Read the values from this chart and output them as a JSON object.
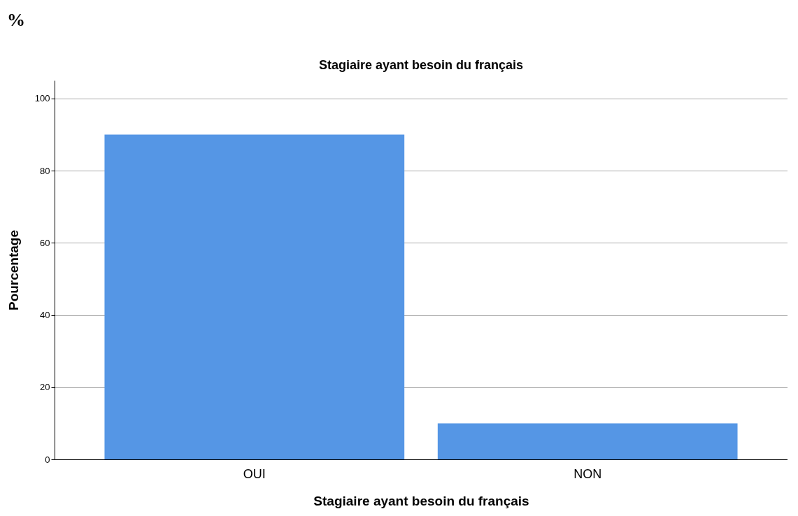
{
  "chart_data": {
    "type": "bar",
    "title": "Stagiaire ayant besoin du français",
    "xlabel": "Stagiaire ayant besoin du français",
    "ylabel": "Pourcentage",
    "annotations": [
      "%"
    ],
    "categories": [
      "OUI",
      "NON"
    ],
    "values": [
      90,
      10
    ],
    "color": "#5596e5",
    "ylim": [
      0,
      105
    ],
    "yticks": [
      0,
      20,
      40,
      60,
      80,
      100
    ],
    "grid": "y"
  }
}
